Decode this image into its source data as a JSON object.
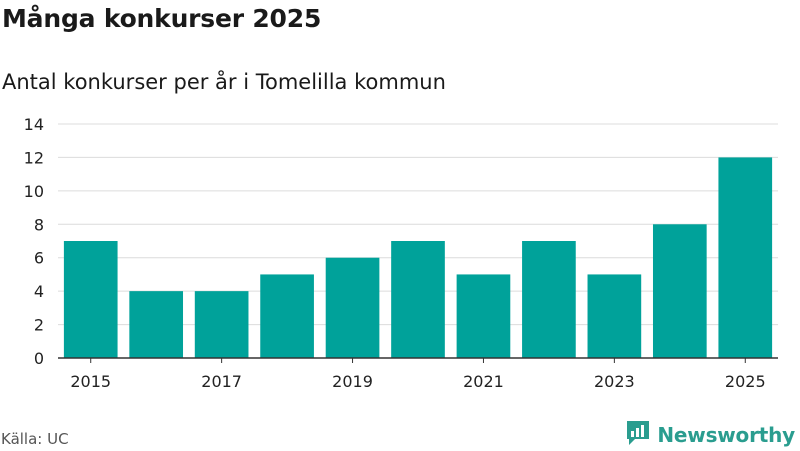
{
  "header": {
    "title": "Många konkurser 2025",
    "subtitle": "Antal konkurser per år i Tomelilla kommun"
  },
  "footer": {
    "source": "Källa: UC",
    "brand": "Newsworthy"
  },
  "colors": {
    "bar": "#00a29a",
    "grid": "#dcdcdc",
    "axis": "#333333",
    "brand": "#2a9d8f"
  },
  "chart_data": {
    "type": "bar",
    "categories": [
      "2015",
      "2016",
      "2017",
      "2018",
      "2019",
      "2020",
      "2021",
      "2022",
      "2023",
      "2024",
      "2025"
    ],
    "values": [
      7,
      4,
      4,
      5,
      6,
      7,
      5,
      7,
      5,
      8,
      12
    ],
    "x_tick_labels": [
      "2015",
      "2017",
      "2019",
      "2021",
      "2023",
      "2025"
    ],
    "y_ticks": [
      0,
      2,
      4,
      6,
      8,
      10,
      12,
      14
    ],
    "ylim": [
      0,
      14
    ],
    "grid": true,
    "legend": "none"
  }
}
